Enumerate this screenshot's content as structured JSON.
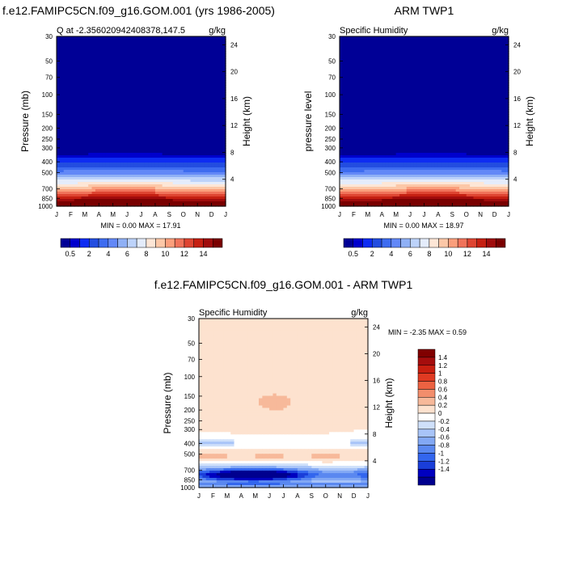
{
  "colors": {
    "q_levels": [
      "#000096",
      "#0000cd",
      "#0e2cf2",
      "#234de0",
      "#3e6cf0",
      "#6288f7",
      "#8fb0f5",
      "#bdd3fa",
      "#e4ecfb",
      "#fde6d6",
      "#fcc7a7",
      "#fa9f7c",
      "#f0735a",
      "#de4532",
      "#c52012",
      "#a00c0c",
      "#7a0000"
    ],
    "diff_levels": [
      "#00008f",
      "#0000c0",
      "#1a3ed9",
      "#3366ee",
      "#5a88f0",
      "#82a8f4",
      "#a8c4f8",
      "#cfe0fa",
      "#ffffff",
      "#fde2cf",
      "#f7b99a",
      "#f28e6c",
      "#ec6242",
      "#e03a22",
      "#c81f10",
      "#a50d0d",
      "#800000"
    ]
  },
  "chart_data": [
    {
      "type": "heatmap",
      "title": "f.e12.FAMIPC5CN.f09_g16.GOM.001 (yrs 1986-2005)",
      "left_subtitle": "Q at -2.356020942408378,147.5",
      "right_subtitle": "g/kg",
      "ylabel": "Pressure (mb)",
      "ylabel_right": "Height (km)",
      "pressure_ticks": [
        "30",
        "50",
        "70",
        "100",
        "150",
        "200",
        "250",
        "300",
        "400",
        "500",
        "700",
        "850",
        "1000"
      ],
      "height_ticks": [
        "24",
        "20",
        "16",
        "12",
        "8",
        "4"
      ],
      "month_ticks": [
        "J",
        "F",
        "M",
        "A",
        "M",
        "J",
        "J",
        "A",
        "S",
        "O",
        "N",
        "D",
        "J"
      ],
      "min_max": "MIN =   0.00 MAX =  17.91",
      "colorbar_labels": [
        "0.5",
        "2",
        "4",
        "6",
        "8",
        "10",
        "12",
        "14"
      ],
      "ylim": [
        1000,
        30
      ],
      "value_range": [
        0.0,
        17.91
      ]
    },
    {
      "type": "heatmap",
      "title": "ARM TWP1",
      "left_subtitle": "Specific Humidity",
      "right_subtitle": "g/kg",
      "ylabel": "pressure level",
      "ylabel_right": "Height (km)",
      "pressure_ticks": [
        "30",
        "50",
        "70",
        "100",
        "150",
        "200",
        "250",
        "300",
        "400",
        "500",
        "700",
        "850",
        "1000"
      ],
      "height_ticks": [
        "24",
        "20",
        "16",
        "12",
        "8",
        "4"
      ],
      "month_ticks": [
        "J",
        "F",
        "M",
        "A",
        "M",
        "J",
        "J",
        "A",
        "S",
        "O",
        "N",
        "D",
        "J"
      ],
      "min_max": "MIN =   0.00 MAX =  18.97",
      "colorbar_labels": [
        "0.5",
        "2",
        "4",
        "6",
        "8",
        "10",
        "12",
        "14"
      ],
      "ylim": [
        1000,
        30
      ],
      "value_range": [
        0.0,
        18.97
      ]
    },
    {
      "type": "heatmap",
      "title": "f.e12.FAMIPC5CN.f09_g16.GOM.001 - ARM TWP1",
      "left_subtitle": "Specific Humidity",
      "right_subtitle": "g/kg",
      "ylabel": "Pressure (mb)",
      "ylabel_right": "Height (km)",
      "pressure_ticks": [
        "30",
        "50",
        "70",
        "100",
        "150",
        "200",
        "250",
        "300",
        "400",
        "500",
        "700",
        "850",
        "1000"
      ],
      "height_ticks": [
        "24",
        "20",
        "16",
        "12",
        "8",
        "4"
      ],
      "month_ticks": [
        "J",
        "F",
        "M",
        "A",
        "M",
        "J",
        "J",
        "A",
        "S",
        "O",
        "N",
        "D",
        "J"
      ],
      "min_max": "MIN =  -2.35 MAX =    0.59",
      "colorbar_labels": [
        "1.4",
        "1.2",
        "1",
        "0.8",
        "0.6",
        "0.4",
        "0.2",
        "0",
        "-0.2",
        "-0.4",
        "-0.6",
        "-0.8",
        "-1",
        "-1.2",
        "-1.4"
      ],
      "ylim": [
        1000,
        30
      ],
      "value_range": [
        -2.35,
        0.59
      ]
    }
  ]
}
